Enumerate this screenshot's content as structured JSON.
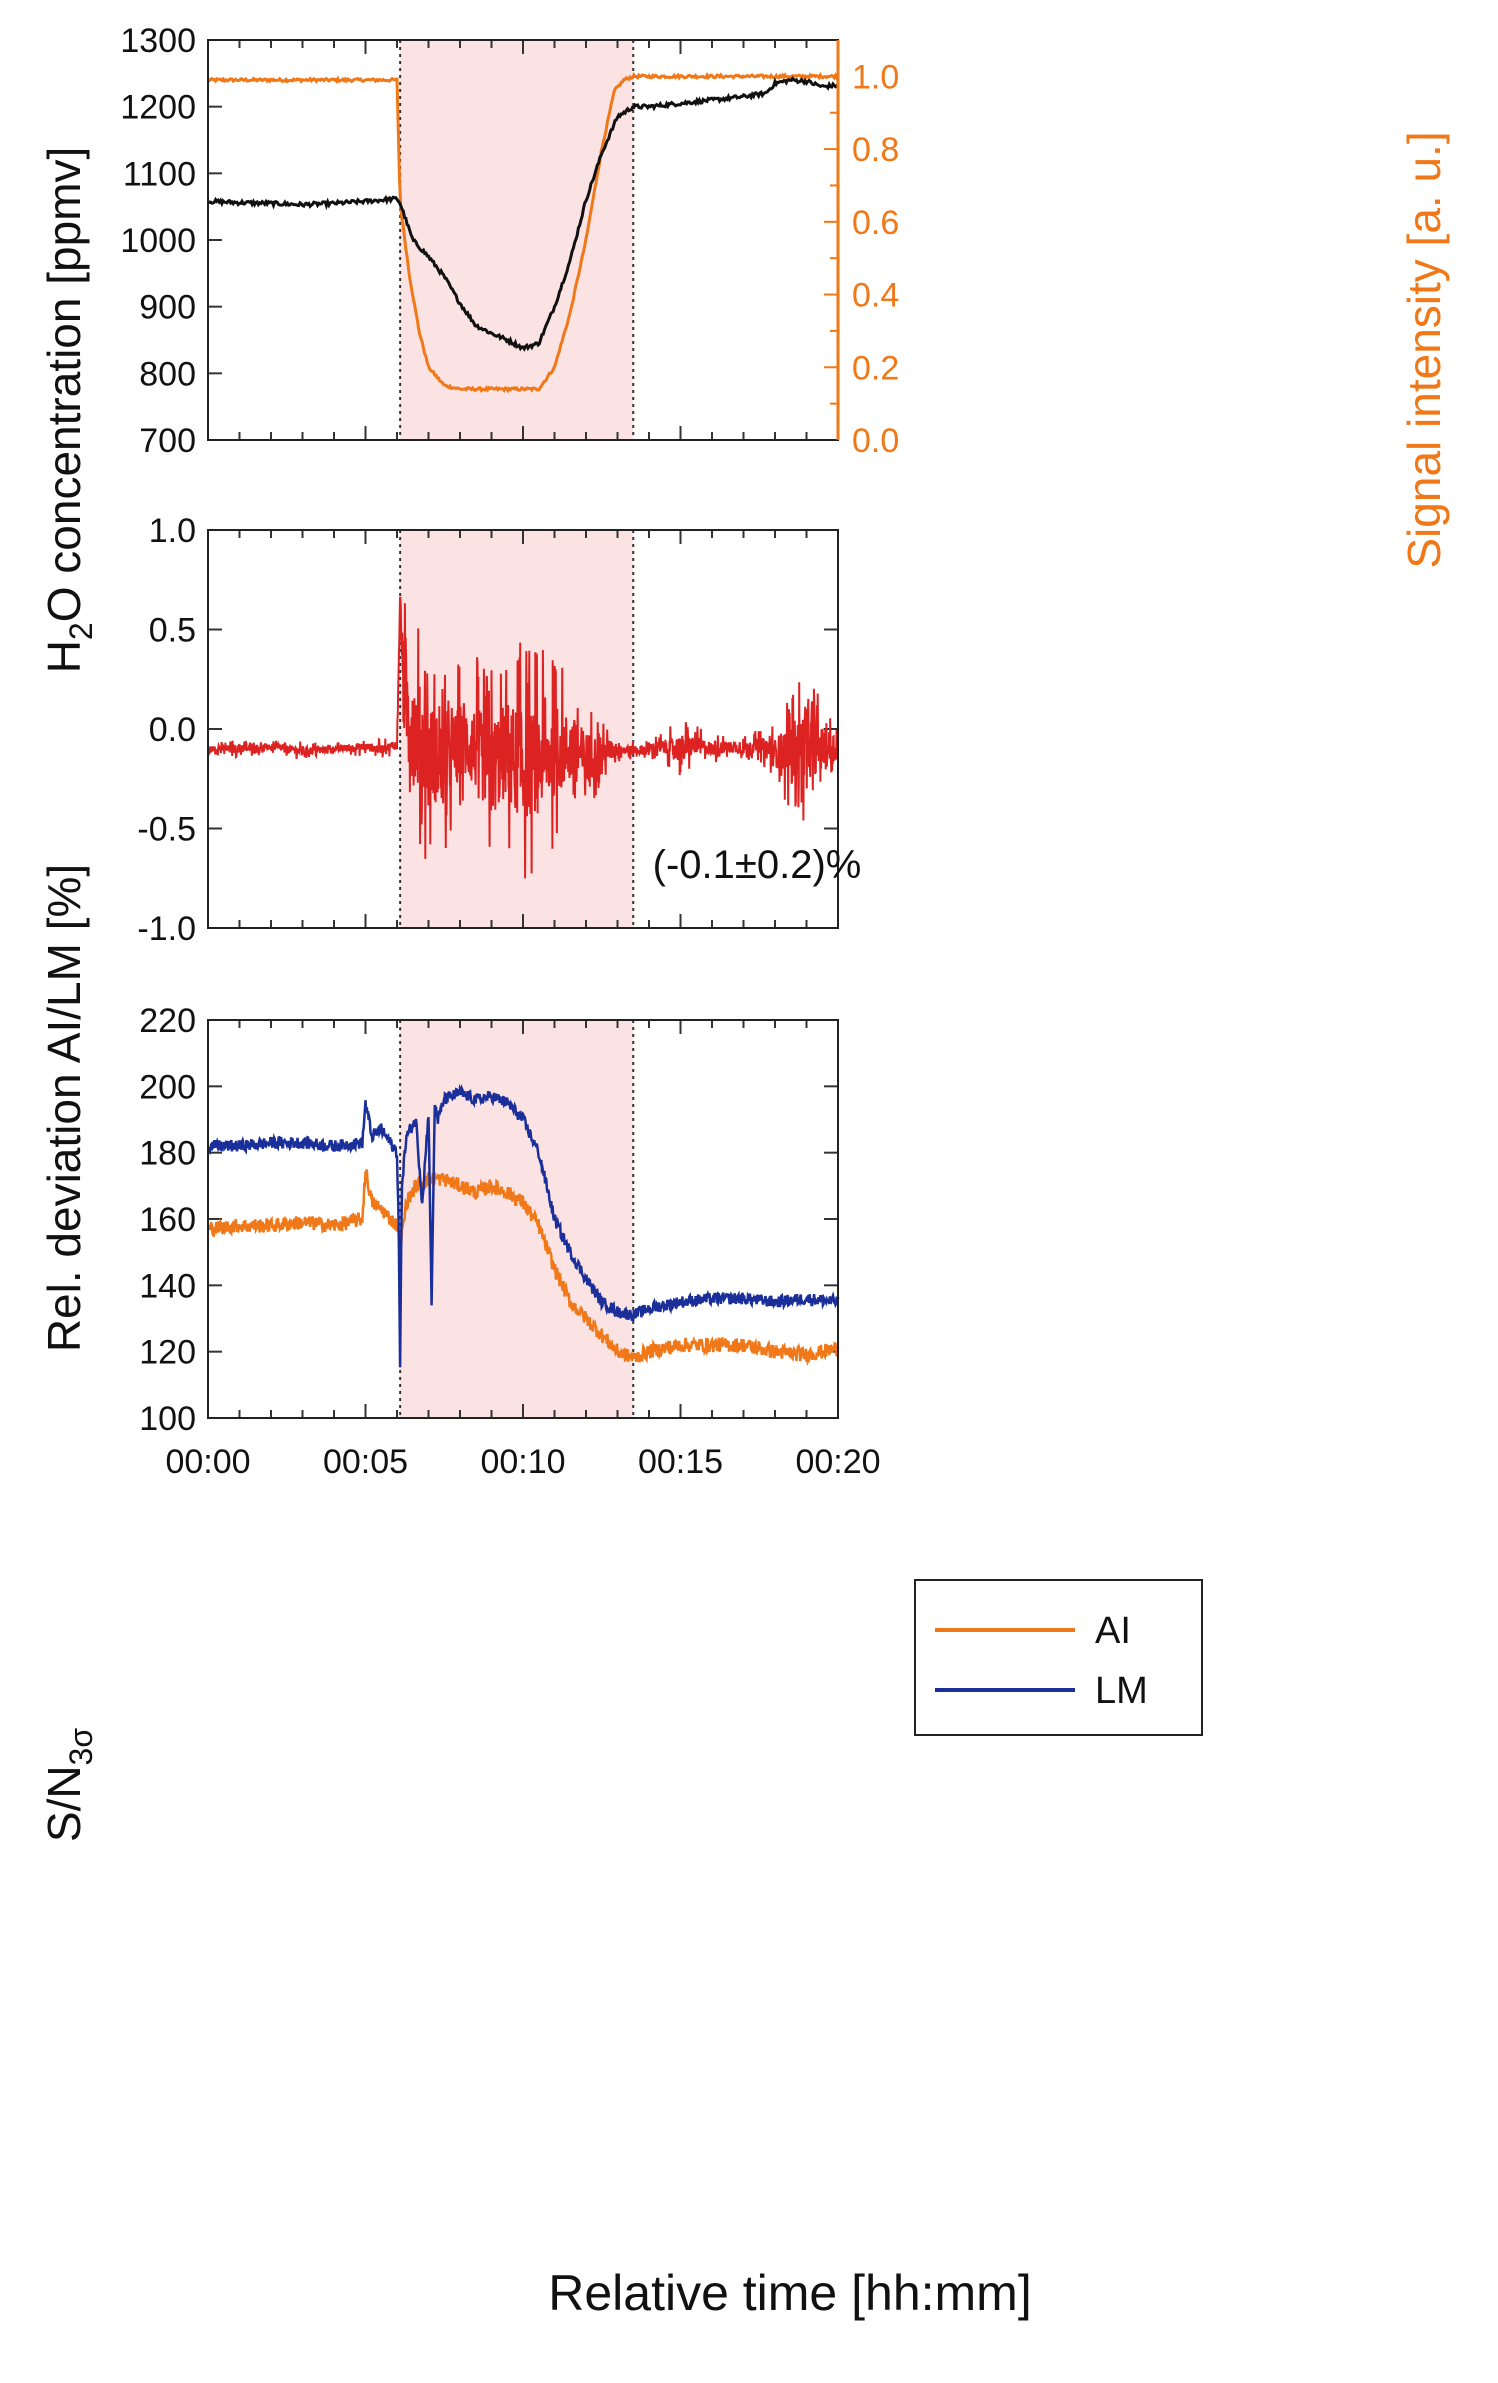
{
  "chart_data": [
    {
      "type": "line",
      "panel": "top",
      "xlabel": "Relative time [hh:mm]",
      "x_ticks": [
        "00:00",
        "00:05",
        "00:10",
        "00:15",
        "00:20"
      ],
      "xlim": [
        0,
        20
      ],
      "shaded_region": [
        6.1,
        13.5
      ],
      "ylabel_left": {
        "pre": "H",
        "sub": "2",
        "post": "O concentration [ppmv]"
      },
      "ylim_left": [
        700,
        1300
      ],
      "y_ticks_left": [
        "700",
        "800",
        "900",
        "1000",
        "1100",
        "1200",
        "1300"
      ],
      "ylabel_right": "Signal intensity [a. u.]",
      "ylim_right": [
        0.0,
        1.1
      ],
      "y_ticks_right": [
        "0.0",
        "0.2",
        "0.4",
        "0.6",
        "0.8",
        "1.0"
      ],
      "series": [
        {
          "name": "H2O concentration",
          "axis": "left",
          "color": "#111111",
          "x": [
            0,
            1,
            2,
            3,
            4,
            5,
            6.0,
            6.1,
            6.5,
            7,
            7.5,
            8,
            8.5,
            9,
            9.5,
            10,
            10.5,
            11,
            11.5,
            12,
            12.5,
            13,
            13.5,
            14,
            15,
            16,
            17,
            17.7,
            18,
            18.5,
            19,
            19.5,
            20
          ],
          "y": [
            1058,
            1056,
            1055,
            1053,
            1055,
            1058,
            1062,
            1055,
            1000,
            975,
            945,
            905,
            872,
            860,
            850,
            838,
            845,
            900,
            970,
            1060,
            1130,
            1185,
            1200,
            1200,
            1205,
            1210,
            1215,
            1220,
            1235,
            1240,
            1238,
            1230,
            1232
          ]
        },
        {
          "name": "Signal intensity",
          "axis": "right",
          "color": "#f07818",
          "x": [
            0,
            2,
            4,
            6.0,
            6.1,
            6.4,
            6.7,
            7,
            7.5,
            8,
            9,
            10,
            10.5,
            11,
            11.5,
            12,
            12.5,
            12.9,
            13.2,
            13.5,
            14,
            16,
            18,
            20
          ],
          "y": [
            0.99,
            0.99,
            0.99,
            0.99,
            0.65,
            0.45,
            0.3,
            0.2,
            0.15,
            0.14,
            0.14,
            0.14,
            0.14,
            0.2,
            0.35,
            0.55,
            0.8,
            0.96,
            0.99,
            1.0,
            1.0,
            1.0,
            1.0,
            1.0
          ]
        }
      ]
    },
    {
      "type": "line",
      "panel": "middle",
      "xlabel": "Relative time [hh:mm]",
      "xlim": [
        0,
        20
      ],
      "shaded_region": [
        6.1,
        13.5
      ],
      "ylabel": "Rel. deviation AI/LM [%]",
      "ylim": [
        -1.0,
        1.0
      ],
      "y_ticks": [
        "1.0",
        "0.5",
        "0.0",
        "-0.5",
        "-1.0"
      ],
      "annotation": "(-0.1±0.2)%",
      "series": [
        {
          "name": "Rel. deviation AI/LM",
          "color": "#dd2222",
          "x": [
            0,
            1,
            2,
            3,
            4,
            5,
            5.5,
            6.0,
            6.1,
            6.2,
            6.5,
            7.0,
            7.5,
            8.0,
            8.5,
            9.0,
            9.5,
            10.0,
            10.5,
            11.0,
            11.5,
            12.0,
            12.5,
            13.0,
            13.5,
            14.0,
            14.5,
            15.0,
            15.5,
            16.0,
            16.5,
            17.0,
            17.5,
            18.0,
            18.5,
            19.0,
            19.5,
            20.0
          ],
          "y": [
            -0.1,
            -0.1,
            -0.09,
            -0.11,
            -0.1,
            -0.09,
            -0.1,
            -0.08,
            0.66,
            0.2,
            0.0,
            -0.1,
            -0.2,
            -0.05,
            -0.1,
            -0.2,
            -0.1,
            -0.2,
            -0.15,
            -0.12,
            -0.1,
            -0.15,
            -0.12,
            -0.1,
            -0.11,
            -0.1,
            -0.09,
            -0.1,
            -0.08,
            -0.1,
            -0.09,
            -0.1,
            -0.08,
            -0.12,
            -0.1,
            -0.08,
            -0.1,
            -0.09
          ],
          "noise_amplitude": [
            0.02,
            0.03,
            0.02,
            0.03,
            0.02,
            0.03,
            0.03,
            0.03,
            0.0,
            0.3,
            0.4,
            0.35,
            0.3,
            0.25,
            0.3,
            0.35,
            0.35,
            0.4,
            0.35,
            0.3,
            0.25,
            0.2,
            0.1,
            0.05,
            0.03,
            0.04,
            0.05,
            0.1,
            0.06,
            0.05,
            0.04,
            0.04,
            0.05,
            0.1,
            0.2,
            0.25,
            0.15,
            0.1
          ]
        }
      ]
    },
    {
      "type": "line",
      "panel": "bottom",
      "xlabel": "Relative time [hh:mm]",
      "x_ticks": [
        "00:00",
        "00:05",
        "00:10",
        "00:15",
        "00:20"
      ],
      "xlim": [
        0,
        20
      ],
      "shaded_region": [
        6.1,
        13.5
      ],
      "ylabel": {
        "pre": "S/N",
        "sub": "3σ"
      },
      "ylim": [
        100,
        220
      ],
      "y_ticks": [
        "100",
        "120",
        "140",
        "160",
        "180",
        "200",
        "220"
      ],
      "legend": {
        "position": "top-right",
        "entries": [
          "AI",
          "LM"
        ]
      },
      "series": [
        {
          "name": "AI",
          "color": "#f07818",
          "x": [
            0,
            1,
            2,
            3,
            4,
            4.9,
            5.0,
            5.2,
            5.5,
            6.0,
            6.1,
            6.3,
            6.6,
            7.0,
            7.5,
            8.0,
            8.5,
            9.0,
            9.5,
            10.0,
            10.5,
            11.0,
            11.5,
            12.0,
            12.5,
            13.0,
            13.5,
            14.0,
            15.0,
            16.0,
            17.0,
            18.0,
            19.0,
            20.0
          ],
          "y": [
            157,
            158,
            158,
            159,
            158,
            160,
            175,
            165,
            163,
            158,
            152,
            165,
            170,
            172,
            172,
            170,
            168,
            170,
            168,
            165,
            158,
            145,
            135,
            130,
            125,
            120,
            118,
            120,
            122,
            122,
            122,
            120,
            119,
            121
          ]
        },
        {
          "name": "LM",
          "color": "#1a2f9a",
          "x": [
            0,
            1,
            2,
            3,
            4,
            4.9,
            5.0,
            5.2,
            5.5,
            6.0,
            6.05,
            6.1,
            6.15,
            6.3,
            6.6,
            6.8,
            7.0,
            7.1,
            7.2,
            7.3,
            7.5,
            8.0,
            8.5,
            9.0,
            9.5,
            10.0,
            10.5,
            11.0,
            11.5,
            12.0,
            12.5,
            13.0,
            13.5,
            14.0,
            15.0,
            16.0,
            17.0,
            18.0,
            19.0,
            20.0
          ],
          "y": [
            182,
            182,
            183,
            183,
            182,
            183,
            195,
            185,
            187,
            180,
            160,
            115,
            170,
            185,
            190,
            165,
            192,
            135,
            195,
            190,
            196,
            198,
            196,
            197,
            195,
            190,
            180,
            160,
            150,
            142,
            135,
            132,
            131,
            133,
            135,
            136,
            136,
            135,
            136,
            135
          ]
        }
      ]
    }
  ]
}
